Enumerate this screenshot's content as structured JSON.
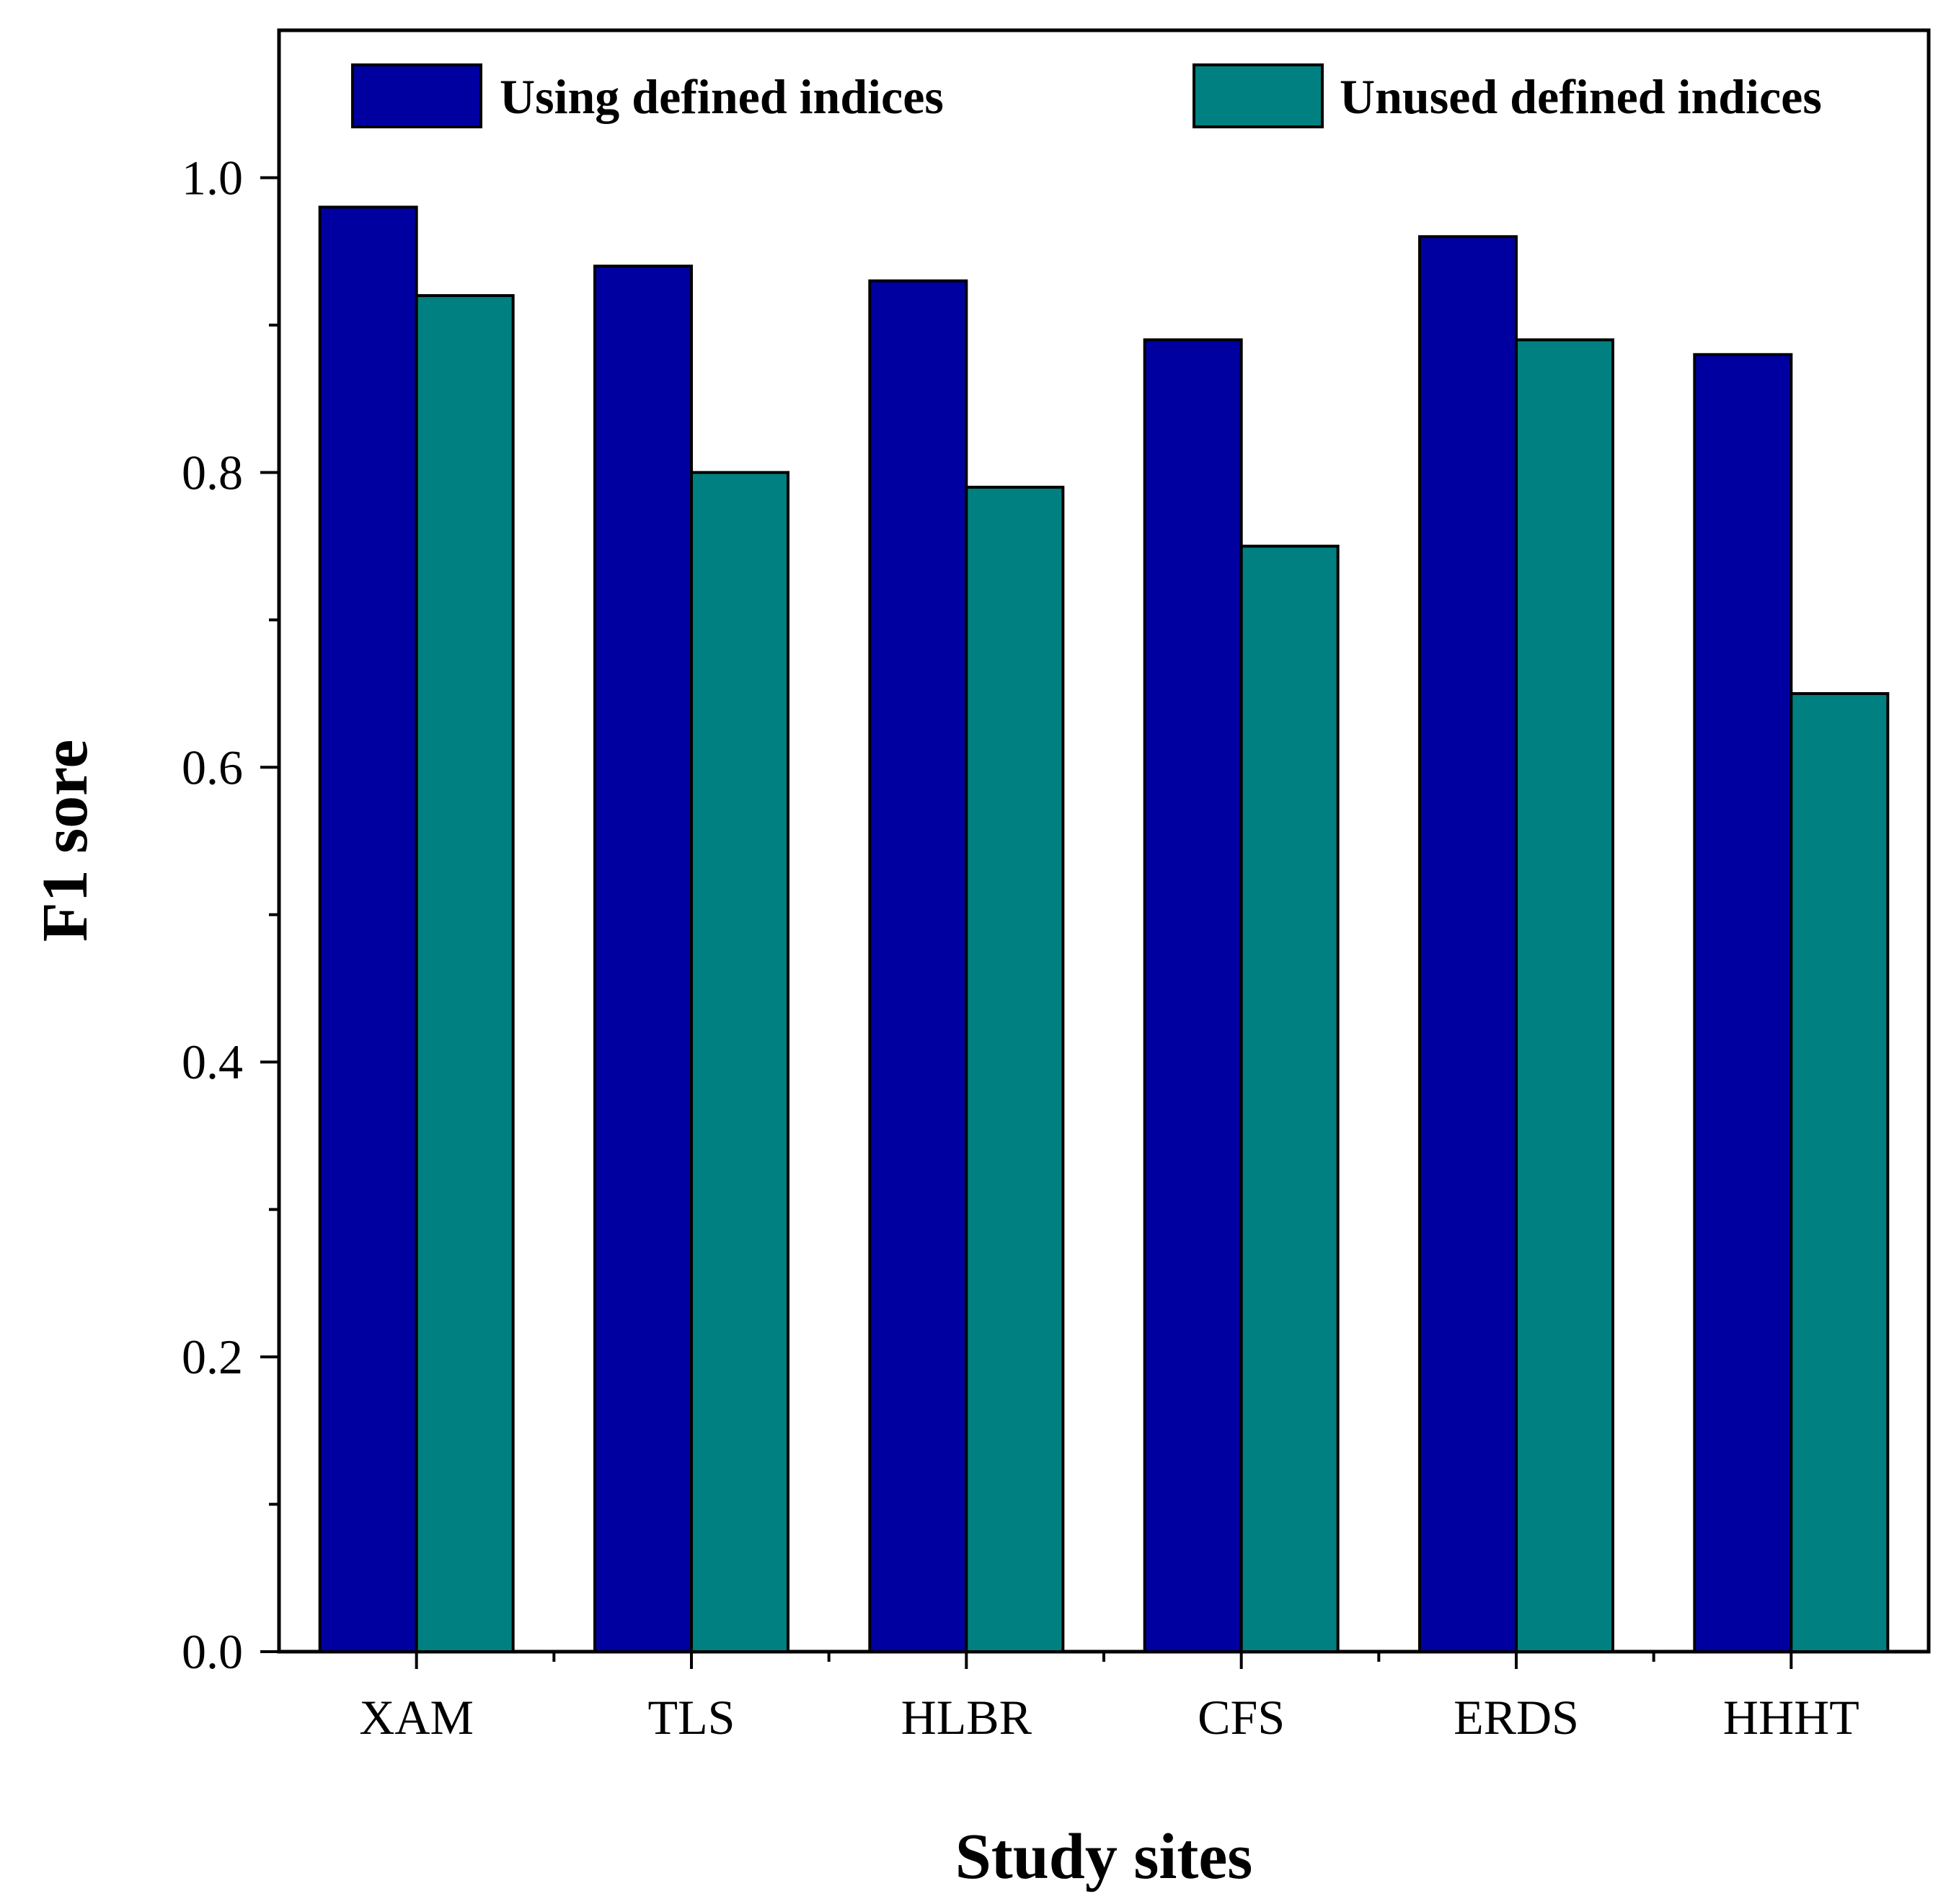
{
  "chart_data": {
    "type": "bar",
    "title": "",
    "xlabel": "Study sites",
    "ylabel": "F1 sore",
    "categories": [
      "XAM",
      "TLS",
      "HLBR",
      "CFS",
      "ERDS",
      "HHHT"
    ],
    "series": [
      {
        "name": "Using defined indices",
        "color": "#0000a0",
        "values": [
          0.98,
          0.94,
          0.93,
          0.89,
          0.96,
          0.88
        ]
      },
      {
        "name": "Unused defined indices",
        "color": "#008080",
        "values": [
          0.92,
          0.8,
          0.79,
          0.75,
          0.89,
          0.65
        ]
      }
    ],
    "ylim": [
      0,
      1.1
    ],
    "yticks": [
      0.0,
      0.2,
      0.4,
      0.6,
      0.8,
      1.0
    ],
    "ytick_labels": [
      "0.0",
      "0.2",
      "0.4",
      "0.6",
      "0.8",
      "1.0"
    ],
    "grid": false,
    "legend_position": "top"
  }
}
